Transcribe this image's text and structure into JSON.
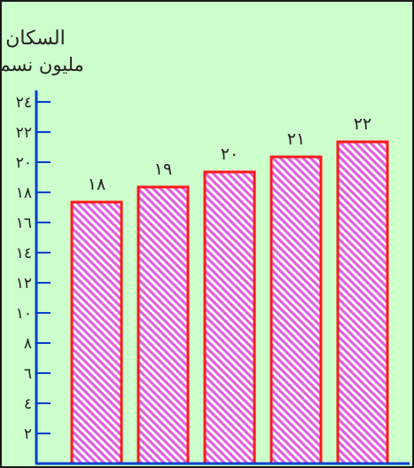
{
  "chart_data": {
    "type": "bar",
    "title": "السكان",
    "ylabel": "مليون نسمة",
    "xlabel": "",
    "categories": [
      "",
      "",
      "",
      "",
      ""
    ],
    "values": [
      18,
      19,
      20,
      21,
      22
    ],
    "value_labels": [
      "١٨",
      "١٩",
      "٢٠",
      "٢١",
      "٢٢"
    ],
    "ylim": [
      0,
      24
    ],
    "yticks": [
      2,
      4,
      6,
      8,
      10,
      12,
      14,
      16,
      18,
      20,
      22,
      24
    ],
    "ytick_labels": [
      "٢",
      "٤",
      "٦",
      "٨",
      "١٠",
      "١٢",
      "١٤",
      "١٦",
      "١٨",
      "٢٠",
      "٢٢",
      "٢٤"
    ],
    "grid": false,
    "colors": {
      "background": "#ccffcc",
      "frame": "#1a1a1a",
      "axis": "#0040d0",
      "bar_outline": "#ff1a1a",
      "bar_hatch_a": "#e060e0",
      "bar_hatch_b": "#ffffff"
    }
  }
}
